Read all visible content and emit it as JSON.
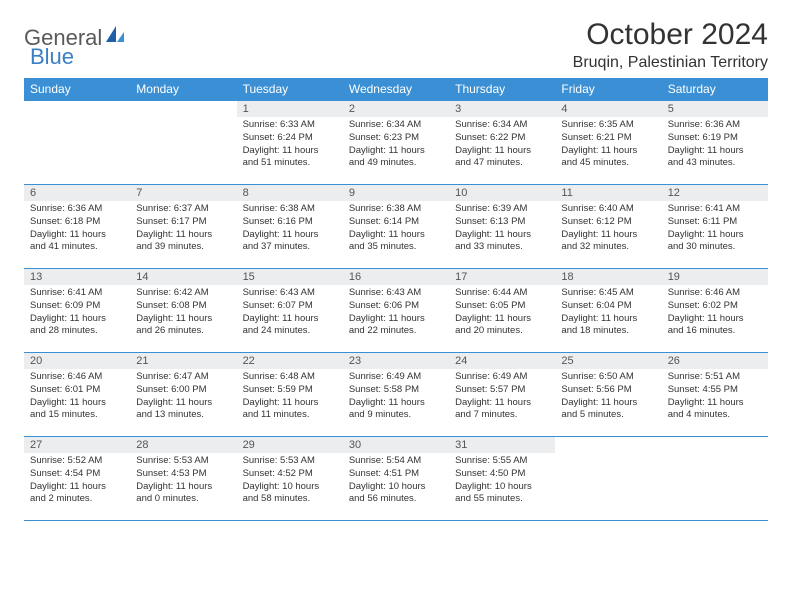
{
  "logo": {
    "part1": "General",
    "part2": "Blue"
  },
  "title": "October 2024",
  "location": "Bruqin, Palestinian Territory",
  "colors": {
    "header_bg": "#3b8fd4",
    "header_text": "#ffffff",
    "daynum_bg": "#ecedee",
    "border": "#3b8fd4",
    "logo_gray": "#5a5a5a",
    "logo_blue": "#3b7fc4",
    "body_text": "#333333",
    "background": "#ffffff"
  },
  "typography": {
    "title_fontsize": 30,
    "location_fontsize": 16,
    "dayheader_fontsize": 12,
    "daynum_fontsize": 11,
    "cell_fontsize": 9.5
  },
  "weekdays": [
    "Sunday",
    "Monday",
    "Tuesday",
    "Wednesday",
    "Thursday",
    "Friday",
    "Saturday"
  ],
  "weeks": [
    [
      {
        "empty": true
      },
      {
        "empty": true
      },
      {
        "num": "1",
        "sunrise": "Sunrise: 6:33 AM",
        "sunset": "Sunset: 6:24 PM",
        "daylight": "Daylight: 11 hours and 51 minutes."
      },
      {
        "num": "2",
        "sunrise": "Sunrise: 6:34 AM",
        "sunset": "Sunset: 6:23 PM",
        "daylight": "Daylight: 11 hours and 49 minutes."
      },
      {
        "num": "3",
        "sunrise": "Sunrise: 6:34 AM",
        "sunset": "Sunset: 6:22 PM",
        "daylight": "Daylight: 11 hours and 47 minutes."
      },
      {
        "num": "4",
        "sunrise": "Sunrise: 6:35 AM",
        "sunset": "Sunset: 6:21 PM",
        "daylight": "Daylight: 11 hours and 45 minutes."
      },
      {
        "num": "5",
        "sunrise": "Sunrise: 6:36 AM",
        "sunset": "Sunset: 6:19 PM",
        "daylight": "Daylight: 11 hours and 43 minutes."
      }
    ],
    [
      {
        "num": "6",
        "sunrise": "Sunrise: 6:36 AM",
        "sunset": "Sunset: 6:18 PM",
        "daylight": "Daylight: 11 hours and 41 minutes."
      },
      {
        "num": "7",
        "sunrise": "Sunrise: 6:37 AM",
        "sunset": "Sunset: 6:17 PM",
        "daylight": "Daylight: 11 hours and 39 minutes."
      },
      {
        "num": "8",
        "sunrise": "Sunrise: 6:38 AM",
        "sunset": "Sunset: 6:16 PM",
        "daylight": "Daylight: 11 hours and 37 minutes."
      },
      {
        "num": "9",
        "sunrise": "Sunrise: 6:38 AM",
        "sunset": "Sunset: 6:14 PM",
        "daylight": "Daylight: 11 hours and 35 minutes."
      },
      {
        "num": "10",
        "sunrise": "Sunrise: 6:39 AM",
        "sunset": "Sunset: 6:13 PM",
        "daylight": "Daylight: 11 hours and 33 minutes."
      },
      {
        "num": "11",
        "sunrise": "Sunrise: 6:40 AM",
        "sunset": "Sunset: 6:12 PM",
        "daylight": "Daylight: 11 hours and 32 minutes."
      },
      {
        "num": "12",
        "sunrise": "Sunrise: 6:41 AM",
        "sunset": "Sunset: 6:11 PM",
        "daylight": "Daylight: 11 hours and 30 minutes."
      }
    ],
    [
      {
        "num": "13",
        "sunrise": "Sunrise: 6:41 AM",
        "sunset": "Sunset: 6:09 PM",
        "daylight": "Daylight: 11 hours and 28 minutes."
      },
      {
        "num": "14",
        "sunrise": "Sunrise: 6:42 AM",
        "sunset": "Sunset: 6:08 PM",
        "daylight": "Daylight: 11 hours and 26 minutes."
      },
      {
        "num": "15",
        "sunrise": "Sunrise: 6:43 AM",
        "sunset": "Sunset: 6:07 PM",
        "daylight": "Daylight: 11 hours and 24 minutes."
      },
      {
        "num": "16",
        "sunrise": "Sunrise: 6:43 AM",
        "sunset": "Sunset: 6:06 PM",
        "daylight": "Daylight: 11 hours and 22 minutes."
      },
      {
        "num": "17",
        "sunrise": "Sunrise: 6:44 AM",
        "sunset": "Sunset: 6:05 PM",
        "daylight": "Daylight: 11 hours and 20 minutes."
      },
      {
        "num": "18",
        "sunrise": "Sunrise: 6:45 AM",
        "sunset": "Sunset: 6:04 PM",
        "daylight": "Daylight: 11 hours and 18 minutes."
      },
      {
        "num": "19",
        "sunrise": "Sunrise: 6:46 AM",
        "sunset": "Sunset: 6:02 PM",
        "daylight": "Daylight: 11 hours and 16 minutes."
      }
    ],
    [
      {
        "num": "20",
        "sunrise": "Sunrise: 6:46 AM",
        "sunset": "Sunset: 6:01 PM",
        "daylight": "Daylight: 11 hours and 15 minutes."
      },
      {
        "num": "21",
        "sunrise": "Sunrise: 6:47 AM",
        "sunset": "Sunset: 6:00 PM",
        "daylight": "Daylight: 11 hours and 13 minutes."
      },
      {
        "num": "22",
        "sunrise": "Sunrise: 6:48 AM",
        "sunset": "Sunset: 5:59 PM",
        "daylight": "Daylight: 11 hours and 11 minutes."
      },
      {
        "num": "23",
        "sunrise": "Sunrise: 6:49 AM",
        "sunset": "Sunset: 5:58 PM",
        "daylight": "Daylight: 11 hours and 9 minutes."
      },
      {
        "num": "24",
        "sunrise": "Sunrise: 6:49 AM",
        "sunset": "Sunset: 5:57 PM",
        "daylight": "Daylight: 11 hours and 7 minutes."
      },
      {
        "num": "25",
        "sunrise": "Sunrise: 6:50 AM",
        "sunset": "Sunset: 5:56 PM",
        "daylight": "Daylight: 11 hours and 5 minutes."
      },
      {
        "num": "26",
        "sunrise": "Sunrise: 5:51 AM",
        "sunset": "Sunset: 4:55 PM",
        "daylight": "Daylight: 11 hours and 4 minutes."
      }
    ],
    [
      {
        "num": "27",
        "sunrise": "Sunrise: 5:52 AM",
        "sunset": "Sunset: 4:54 PM",
        "daylight": "Daylight: 11 hours and 2 minutes."
      },
      {
        "num": "28",
        "sunrise": "Sunrise: 5:53 AM",
        "sunset": "Sunset: 4:53 PM",
        "daylight": "Daylight: 11 hours and 0 minutes."
      },
      {
        "num": "29",
        "sunrise": "Sunrise: 5:53 AM",
        "sunset": "Sunset: 4:52 PM",
        "daylight": "Daylight: 10 hours and 58 minutes."
      },
      {
        "num": "30",
        "sunrise": "Sunrise: 5:54 AM",
        "sunset": "Sunset: 4:51 PM",
        "daylight": "Daylight: 10 hours and 56 minutes."
      },
      {
        "num": "31",
        "sunrise": "Sunrise: 5:55 AM",
        "sunset": "Sunset: 4:50 PM",
        "daylight": "Daylight: 10 hours and 55 minutes."
      },
      {
        "empty": true
      },
      {
        "empty": true
      }
    ]
  ]
}
